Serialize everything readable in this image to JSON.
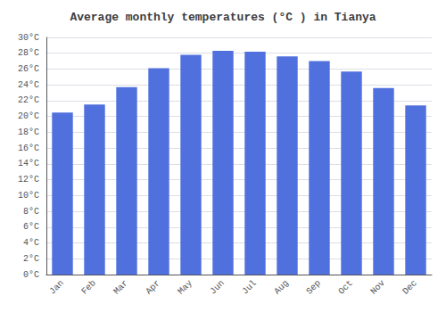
{
  "chart_data": {
    "type": "bar",
    "title": "Average monthly temperatures (°C ) in Tianya",
    "categories": [
      "Jan",
      "Feb",
      "Mar",
      "Apr",
      "May",
      "Jun",
      "Jul",
      "Aug",
      "Sep",
      "Oct",
      "Nov",
      "Dec"
    ],
    "values": [
      20.5,
      21.5,
      23.7,
      26.1,
      27.8,
      28.3,
      28.2,
      27.6,
      27.0,
      25.7,
      23.6,
      21.4
    ],
    "ylim": [
      0,
      30
    ],
    "yticks": [
      {
        "value": 0,
        "label": "0°C"
      },
      {
        "value": 2,
        "label": "2°C"
      },
      {
        "value": 4,
        "label": "4°C"
      },
      {
        "value": 6,
        "label": "6°C"
      },
      {
        "value": 8,
        "label": "8°C"
      },
      {
        "value": 10,
        "label": "10°C"
      },
      {
        "value": 12,
        "label": "12°C"
      },
      {
        "value": 14,
        "label": "14°C"
      },
      {
        "value": 16,
        "label": "16°C"
      },
      {
        "value": 18,
        "label": "18°C"
      },
      {
        "value": 20,
        "label": "20°C"
      },
      {
        "value": 22,
        "label": "22°C"
      },
      {
        "value": 24,
        "label": "24°C"
      },
      {
        "value": 26,
        "label": "26°C"
      },
      {
        "value": 28,
        "label": "28°C"
      },
      {
        "value": 30,
        "label": "30°C"
      }
    ],
    "grid": true
  }
}
